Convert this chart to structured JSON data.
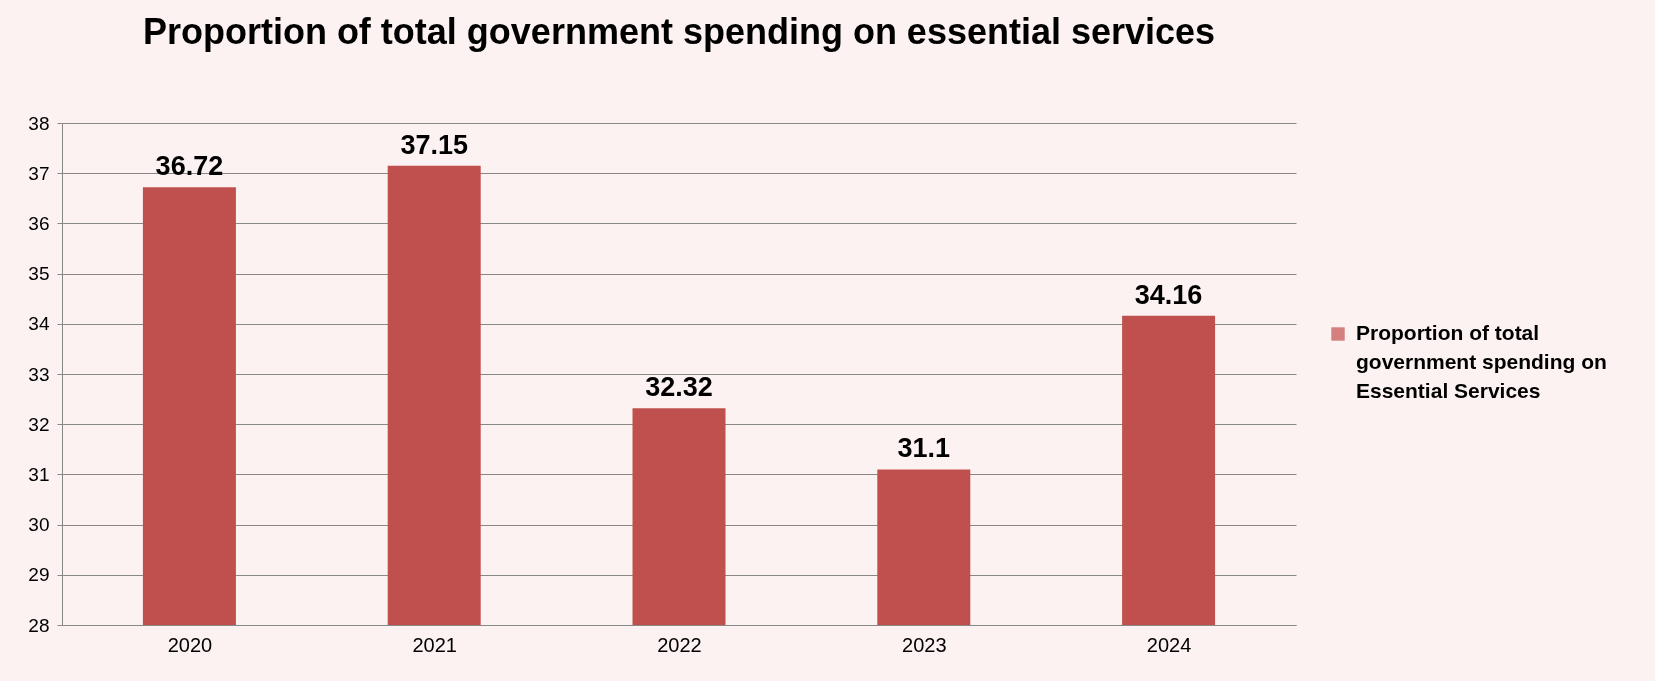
{
  "chart_data": {
    "type": "bar",
    "title": "Proportion of total government spending on essential services",
    "categories": [
      "2020",
      "2021",
      "2022",
      "2023",
      "2024"
    ],
    "series": [
      {
        "name": "Proportion of total government spending on Essential Services",
        "color": "#c0504d",
        "values": [
          36.72,
          37.15,
          32.32,
          31.1,
          34.16
        ]
      }
    ],
    "ylim": [
      28,
      38
    ],
    "yticks": [
      28,
      29,
      30,
      31,
      32,
      33,
      34,
      35,
      36,
      37,
      38
    ],
    "grid": "y",
    "legend": "right",
    "data_labels": true
  }
}
